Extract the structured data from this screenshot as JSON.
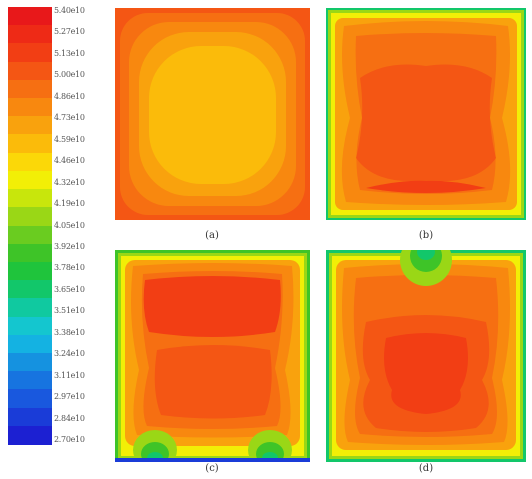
{
  "colorbar": {
    "colors": [
      "#e8181a",
      "#ee2a16",
      "#f23e14",
      "#f45614",
      "#f66f12",
      "#f8880f",
      "#f9a20d",
      "#fbbb0a",
      "#fbd808",
      "#f2ef06",
      "#c8e60c",
      "#9ad716",
      "#6acc20",
      "#3ec428",
      "#1fc43c",
      "#12c76a",
      "#10c9a0",
      "#14c6cf",
      "#14b2e2",
      "#1592e0",
      "#1774e0",
      "#1958de",
      "#1a3cd8",
      "#1c20d2"
    ],
    "labels": [
      "5.40e10",
      "5.27e10",
      "5.13e10",
      "5.00e10",
      "4.86e10",
      "4.73e10",
      "4.59e10",
      "4.46e10",
      "4.32e10",
      "4.19e10",
      "4.05e10",
      "3.92e10",
      "3.78e10",
      "3.65e10",
      "3.51e10",
      "3.38e10",
      "3.24e10",
      "3.11e10",
      "2.97e10",
      "2.84e10",
      "2.70e10"
    ]
  },
  "panels": [
    {
      "id": "a",
      "caption": "(a)"
    },
    {
      "id": "b",
      "caption": "(b)"
    },
    {
      "id": "c",
      "caption": "(c)"
    },
    {
      "id": "d",
      "caption": "(d)"
    }
  ]
}
